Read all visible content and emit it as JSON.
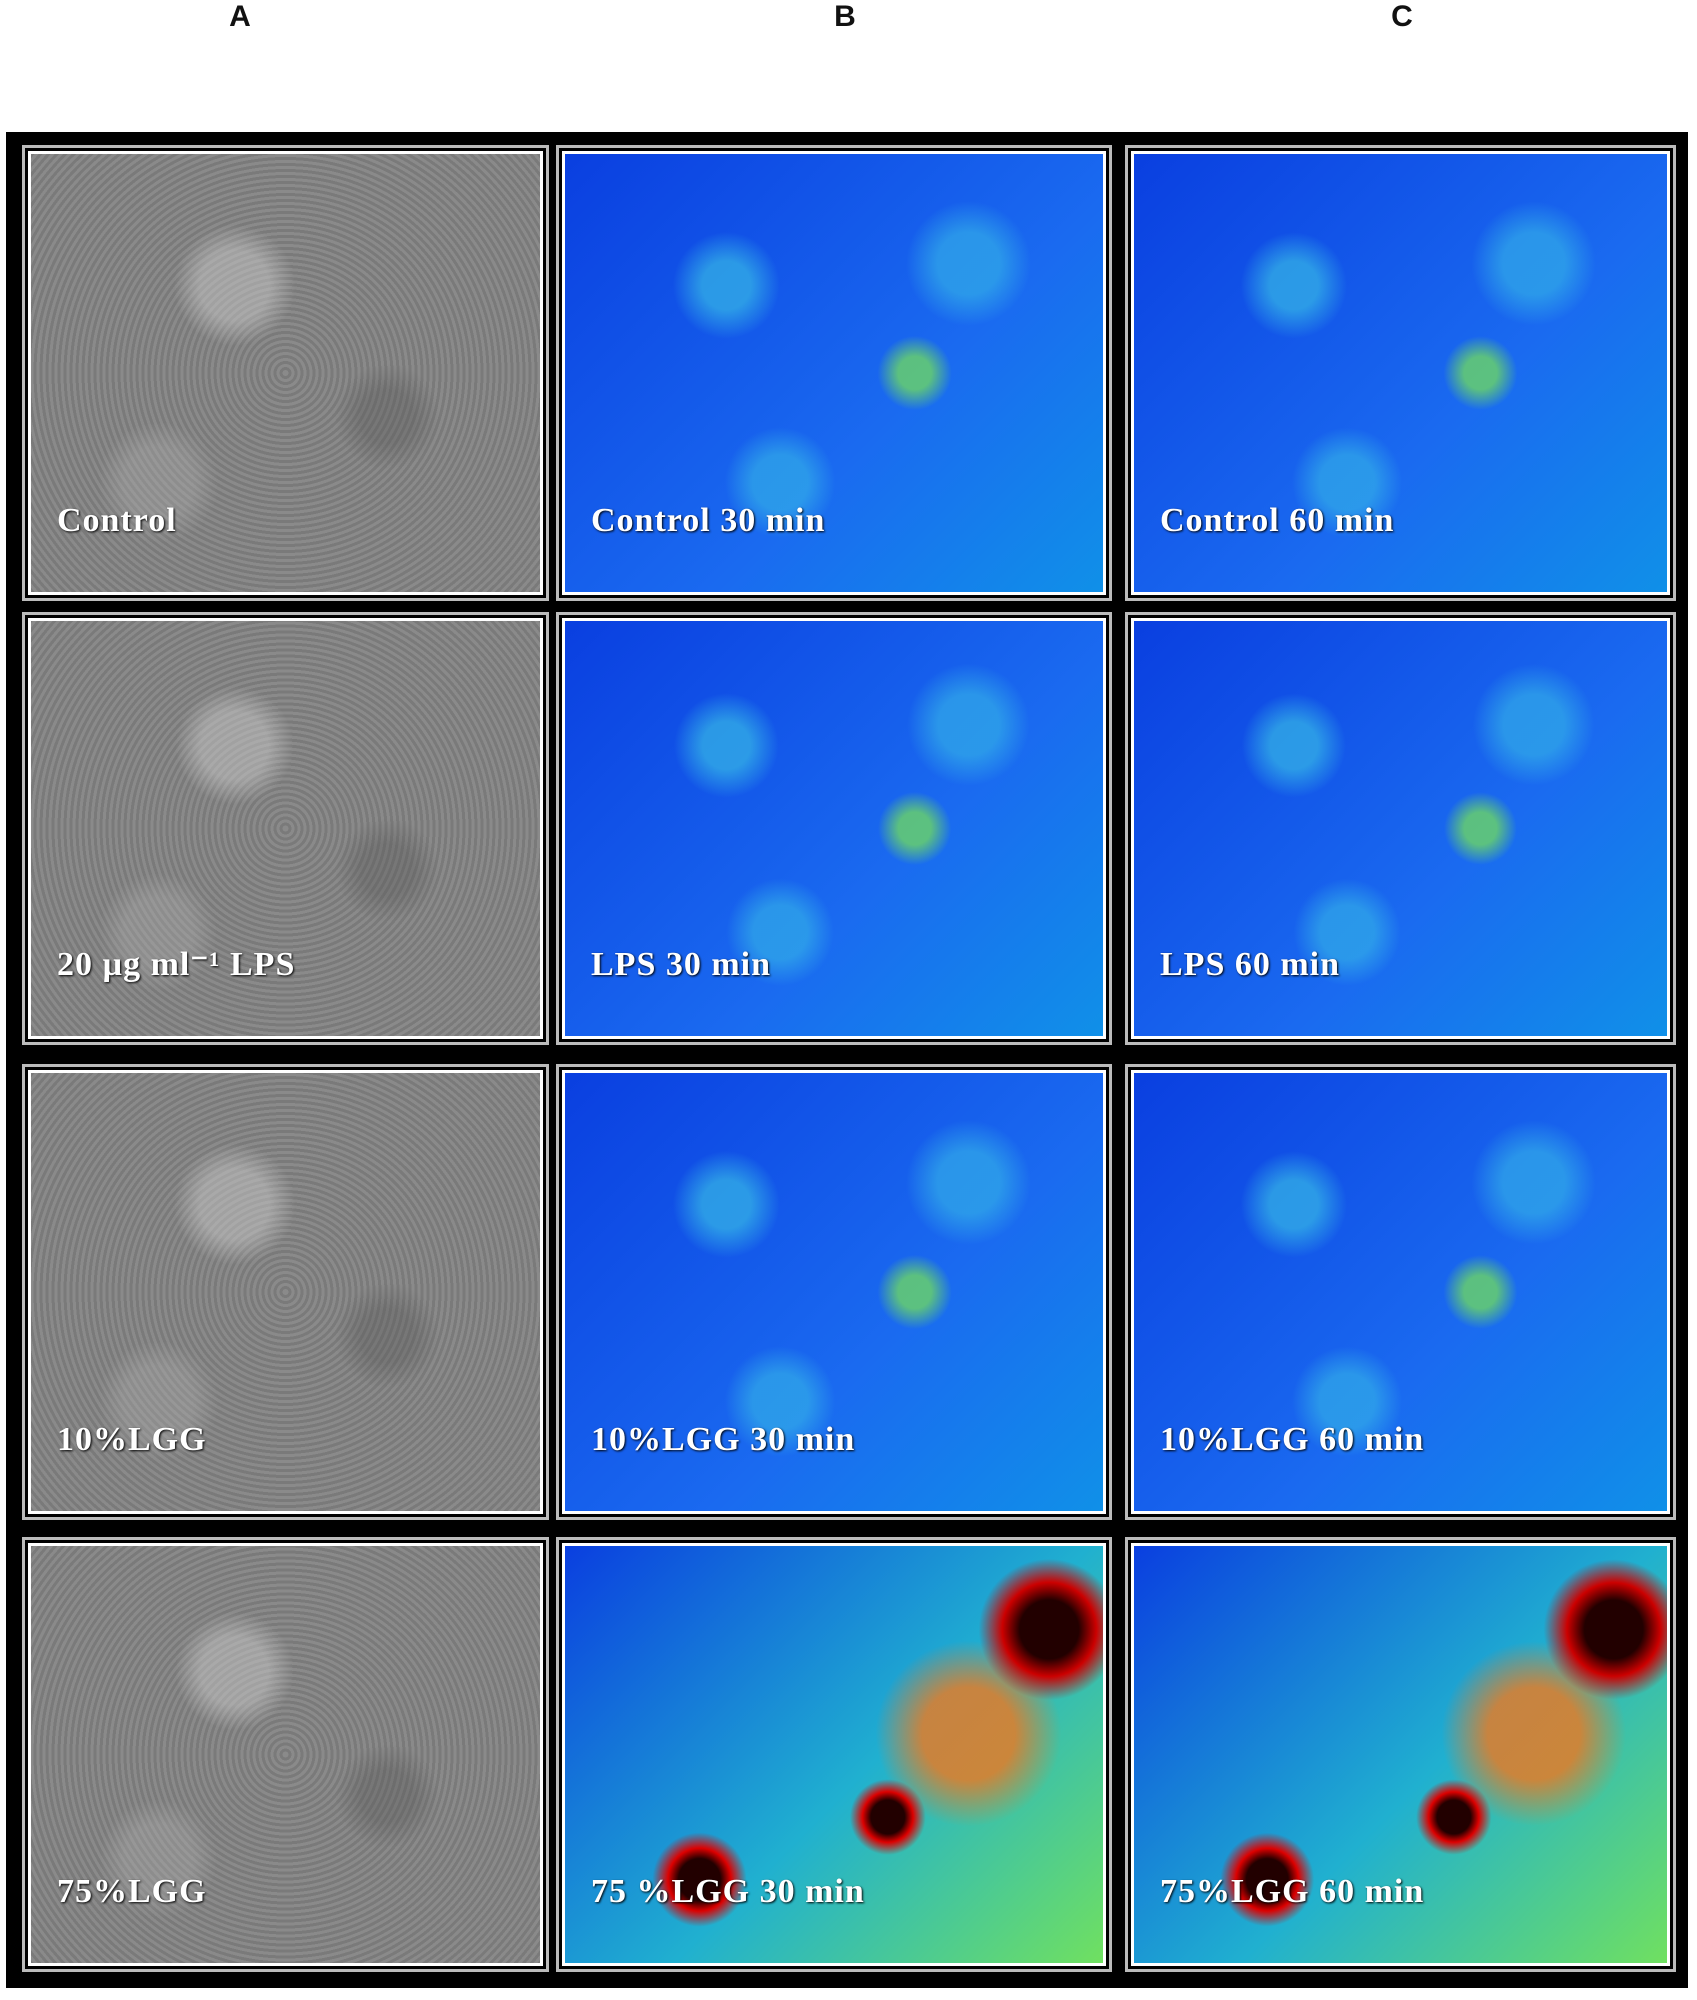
{
  "column_labels": [
    "A",
    "B",
    "C"
  ],
  "panels": [
    [
      "Control",
      "Control 30 min",
      "Control 60 min"
    ],
    [
      "20 µg ml⁻¹ LPS",
      "LPS 30 min",
      "LPS 60 min"
    ],
    [
      "10%LGG",
      "10%LGG 30 min",
      "10%LGG 60 min"
    ],
    [
      "75%LGG",
      "75 %LGG 30 min",
      "75%LGG 60 min"
    ]
  ]
}
